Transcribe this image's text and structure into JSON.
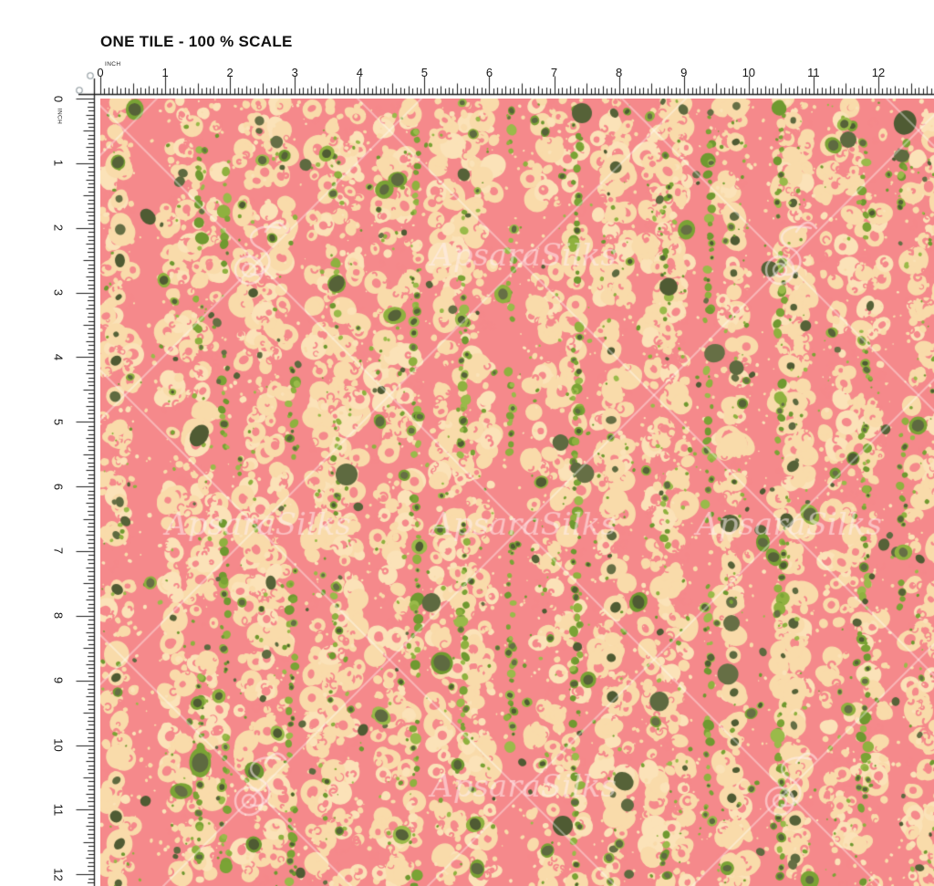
{
  "page": {
    "title": "ONE TILE - 100 % SCALE"
  },
  "ruler": {
    "unit": "INCH",
    "h_numbers": [
      "0",
      "1",
      "2",
      "3",
      "4",
      "5",
      "6",
      "7",
      "8",
      "9",
      "10",
      "11",
      "12"
    ],
    "v_numbers": [
      "0",
      "1",
      "2",
      "3",
      "4",
      "5",
      "6",
      "7",
      "8",
      "9",
      "10",
      "11",
      "12"
    ]
  },
  "watermark": {
    "text": "ApsaraSilks"
  },
  "colors": {
    "pink": "#f5898b",
    "cream": "#f9dbaa",
    "cream_light": "#fbe2b8",
    "greens": [
      "#8fb13f",
      "#7aa335",
      "#9aba4a",
      "#6f9930"
    ],
    "olives": [
      "#5e6a40",
      "#566238",
      "#666f45",
      "#4f5b33"
    ],
    "ruler_ink": "#1b1b1b",
    "marker_gray": "#8b969b",
    "watermark_tint": "rgba(255,238,240,0.55)",
    "lattice": "rgba(255,255,255,0.38)"
  }
}
